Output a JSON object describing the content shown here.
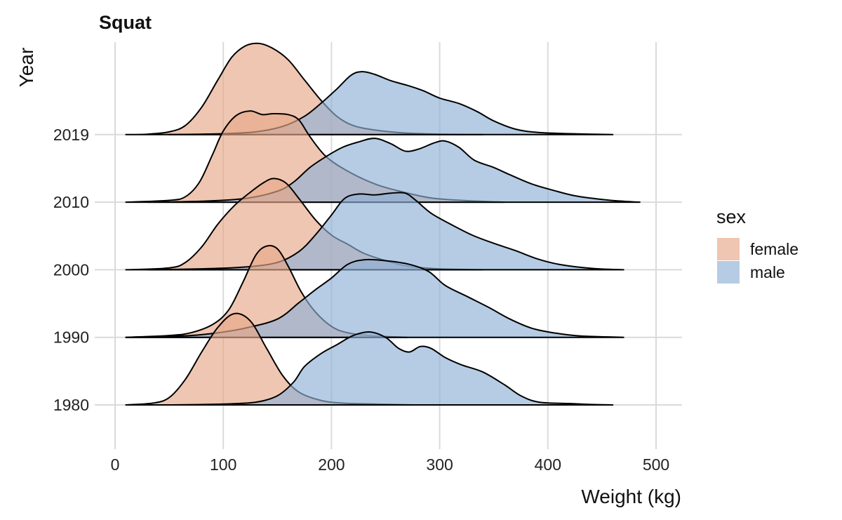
{
  "chart_data": {
    "type": "area",
    "subtype": "ridgeline-density",
    "title": "Squat",
    "xlabel": "Weight (kg)",
    "ylabel": "Year",
    "xlim": [
      0,
      500
    ],
    "x_ticks": [
      0,
      100,
      200,
      300,
      400,
      500
    ],
    "y_categories": [
      "1980",
      "1990",
      "2000",
      "2010",
      "2019"
    ],
    "grid": true,
    "legend": {
      "title": "sex",
      "position": "right"
    },
    "series": [
      {
        "name": "female",
        "color": "#e6a887",
        "ridges": [
          {
            "year": "1980",
            "points": [
              [
                10,
                0
              ],
              [
                35,
                0.02
              ],
              [
                50,
                0.08
              ],
              [
                65,
                0.28
              ],
              [
                80,
                0.58
              ],
              [
                95,
                0.85
              ],
              [
                110,
                1
              ],
              [
                125,
                0.92
              ],
              [
                140,
                0.62
              ],
              [
                155,
                0.32
              ],
              [
                170,
                0.14
              ],
              [
                190,
                0.05
              ],
              [
                210,
                0.02
              ],
              [
                240,
                0.01
              ],
              [
                275,
                0
              ]
            ]
          },
          {
            "year": "1990",
            "points": [
              [
                10,
                0
              ],
              [
                50,
                0.02
              ],
              [
                70,
                0.05
              ],
              [
                90,
                0.14
              ],
              [
                105,
                0.3
              ],
              [
                118,
                0.6
              ],
              [
                130,
                0.9
              ],
              [
                140,
                1
              ],
              [
                150,
                0.97
              ],
              [
                160,
                0.78
              ],
              [
                172,
                0.5
              ],
              [
                185,
                0.28
              ],
              [
                200,
                0.12
              ],
              [
                215,
                0.05
              ],
              [
                240,
                0.015
              ],
              [
                270,
                0
              ]
            ]
          },
          {
            "year": "2000",
            "points": [
              [
                10,
                0
              ],
              [
                50,
                0.02
              ],
              [
                65,
                0.08
              ],
              [
                80,
                0.25
              ],
              [
                95,
                0.5
              ],
              [
                110,
                0.7
              ],
              [
                125,
                0.85
              ],
              [
                138,
                0.96
              ],
              [
                147,
                1
              ],
              [
                158,
                0.95
              ],
              [
                170,
                0.78
              ],
              [
                185,
                0.55
              ],
              [
                200,
                0.38
              ],
              [
                215,
                0.28
              ],
              [
                230,
                0.18
              ],
              [
                250,
                0.1
              ],
              [
                270,
                0.04
              ],
              [
                300,
                0.01
              ],
              [
                340,
                0
              ]
            ]
          },
          {
            "year": "2010",
            "points": [
              [
                10,
                0
              ],
              [
                50,
                0.02
              ],
              [
                65,
                0.06
              ],
              [
                78,
                0.22
              ],
              [
                90,
                0.52
              ],
              [
                100,
                0.78
              ],
              [
                112,
                0.95
              ],
              [
                125,
                1
              ],
              [
                136,
                0.96
              ],
              [
                146,
                0.97
              ],
              [
                160,
                0.96
              ],
              [
                170,
                0.9
              ],
              [
                180,
                0.72
              ],
              [
                195,
                0.5
              ],
              [
                215,
                0.34
              ],
              [
                240,
                0.2
              ],
              [
                260,
                0.13
              ],
              [
                290,
                0.05
              ],
              [
                320,
                0.02
              ],
              [
                360,
                0
              ]
            ]
          },
          {
            "year": "2019",
            "points": [
              [
                10,
                0
              ],
              [
                30,
                0.005
              ],
              [
                50,
                0.03
              ],
              [
                65,
                0.1
              ],
              [
                80,
                0.3
              ],
              [
                95,
                0.6
              ],
              [
                108,
                0.85
              ],
              [
                120,
                0.97
              ],
              [
                132,
                1
              ],
              [
                145,
                0.95
              ],
              [
                160,
                0.82
              ],
              [
                175,
                0.6
              ],
              [
                190,
                0.38
              ],
              [
                205,
                0.2
              ],
              [
                220,
                0.1
              ],
              [
                240,
                0.05
              ],
              [
                265,
                0.02
              ],
              [
                300,
                0.005
              ],
              [
                340,
                0
              ]
            ]
          }
        ]
      },
      {
        "name": "male",
        "color": "#8fb0d6",
        "ridges": [
          {
            "year": "1980",
            "points": [
              [
                50,
                0
              ],
              [
                100,
                0.01
              ],
              [
                130,
                0.03
              ],
              [
                150,
                0.1
              ],
              [
                165,
                0.25
              ],
              [
                175,
                0.42
              ],
              [
                190,
                0.56
              ],
              [
                205,
                0.66
              ],
              [
                220,
                0.76
              ],
              [
                235,
                0.8
              ],
              [
                250,
                0.74
              ],
              [
                262,
                0.62
              ],
              [
                272,
                0.58
              ],
              [
                282,
                0.64
              ],
              [
                292,
                0.62
              ],
              [
                305,
                0.52
              ],
              [
                320,
                0.44
              ],
              [
                340,
                0.36
              ],
              [
                360,
                0.22
              ],
              [
                375,
                0.1
              ],
              [
                392,
                0.03
              ],
              [
                420,
                0.015
              ],
              [
                440,
                0.005
              ],
              [
                460,
                0
              ]
            ]
          },
          {
            "year": "1990",
            "points": [
              [
                10,
                0
              ],
              [
                40,
                0.01
              ],
              [
                70,
                0.02
              ],
              [
                95,
                0.05
              ],
              [
                120,
                0.1
              ],
              [
                150,
                0.2
              ],
              [
                170,
                0.38
              ],
              [
                185,
                0.52
              ],
              [
                200,
                0.65
              ],
              [
                215,
                0.8
              ],
              [
                230,
                0.85
              ],
              [
                250,
                0.84
              ],
              [
                272,
                0.8
              ],
              [
                290,
                0.72
              ],
              [
                305,
                0.57
              ],
              [
                325,
                0.45
              ],
              [
                345,
                0.33
              ],
              [
                365,
                0.2
              ],
              [
                385,
                0.1
              ],
              [
                405,
                0.05
              ],
              [
                430,
                0.015
              ],
              [
                470,
                0
              ]
            ]
          },
          {
            "year": "2000",
            "points": [
              [
                30,
                0
              ],
              [
                80,
                0.01
              ],
              [
                120,
                0.03
              ],
              [
                150,
                0.08
              ],
              [
                170,
                0.2
              ],
              [
                185,
                0.38
              ],
              [
                200,
                0.6
              ],
              [
                212,
                0.78
              ],
              [
                225,
                0.83
              ],
              [
                240,
                0.82
              ],
              [
                255,
                0.84
              ],
              [
                268,
                0.84
              ],
              [
                278,
                0.76
              ],
              [
                292,
                0.62
              ],
              [
                310,
                0.5
              ],
              [
                330,
                0.38
              ],
              [
                350,
                0.29
              ],
              [
                370,
                0.21
              ],
              [
                390,
                0.12
              ],
              [
                410,
                0.06
              ],
              [
                440,
                0.015
              ],
              [
                470,
                0
              ]
            ]
          },
          {
            "year": "2010",
            "points": [
              [
                30,
                0
              ],
              [
                80,
                0.01
              ],
              [
                120,
                0.04
              ],
              [
                150,
                0.12
              ],
              [
                165,
                0.22
              ],
              [
                180,
                0.38
              ],
              [
                195,
                0.5
              ],
              [
                210,
                0.6
              ],
              [
                225,
                0.66
              ],
              [
                240,
                0.7
              ],
              [
                255,
                0.64
              ],
              [
                268,
                0.56
              ],
              [
                280,
                0.58
              ],
              [
                295,
                0.65
              ],
              [
                305,
                0.67
              ],
              [
                318,
                0.6
              ],
              [
                332,
                0.46
              ],
              [
                350,
                0.38
              ],
              [
                365,
                0.3
              ],
              [
                385,
                0.2
              ],
              [
                405,
                0.13
              ],
              [
                425,
                0.07
              ],
              [
                450,
                0.03
              ],
              [
                470,
                0.01
              ],
              [
                485,
                0
              ]
            ]
          },
          {
            "year": "2019",
            "points": [
              [
                50,
                0
              ],
              [
                100,
                0.01
              ],
              [
                130,
                0.03
              ],
              [
                155,
                0.09
              ],
              [
                175,
                0.2
              ],
              [
                190,
                0.34
              ],
              [
                205,
                0.5
              ],
              [
                218,
                0.65
              ],
              [
                228,
                0.69
              ],
              [
                240,
                0.66
              ],
              [
                255,
                0.59
              ],
              [
                270,
                0.54
              ],
              [
                285,
                0.48
              ],
              [
                300,
                0.4
              ],
              [
                318,
                0.34
              ],
              [
                335,
                0.25
              ],
              [
                350,
                0.15
              ],
              [
                370,
                0.06
              ],
              [
                390,
                0.025
              ],
              [
                420,
                0.01
              ],
              [
                460,
                0
              ]
            ]
          }
        ]
      }
    ]
  }
}
